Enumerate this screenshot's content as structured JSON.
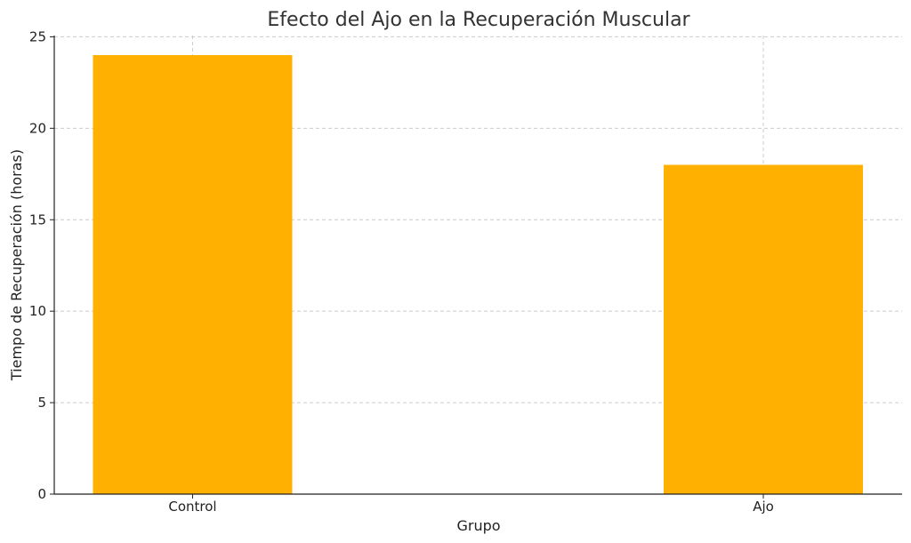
{
  "chart_data": {
    "type": "bar",
    "title": "Efecto del Ajo en la Recuperación Muscular",
    "xlabel": "Grupo",
    "ylabel": "Tiempo de Recuperación (horas)",
    "categories": [
      "Control",
      "Ajo"
    ],
    "values": [
      24,
      18
    ],
    "ylim": [
      0,
      25
    ],
    "yticks": [
      0,
      5,
      10,
      15,
      20,
      25
    ],
    "grid": true,
    "bar_color": "#FFB000"
  }
}
